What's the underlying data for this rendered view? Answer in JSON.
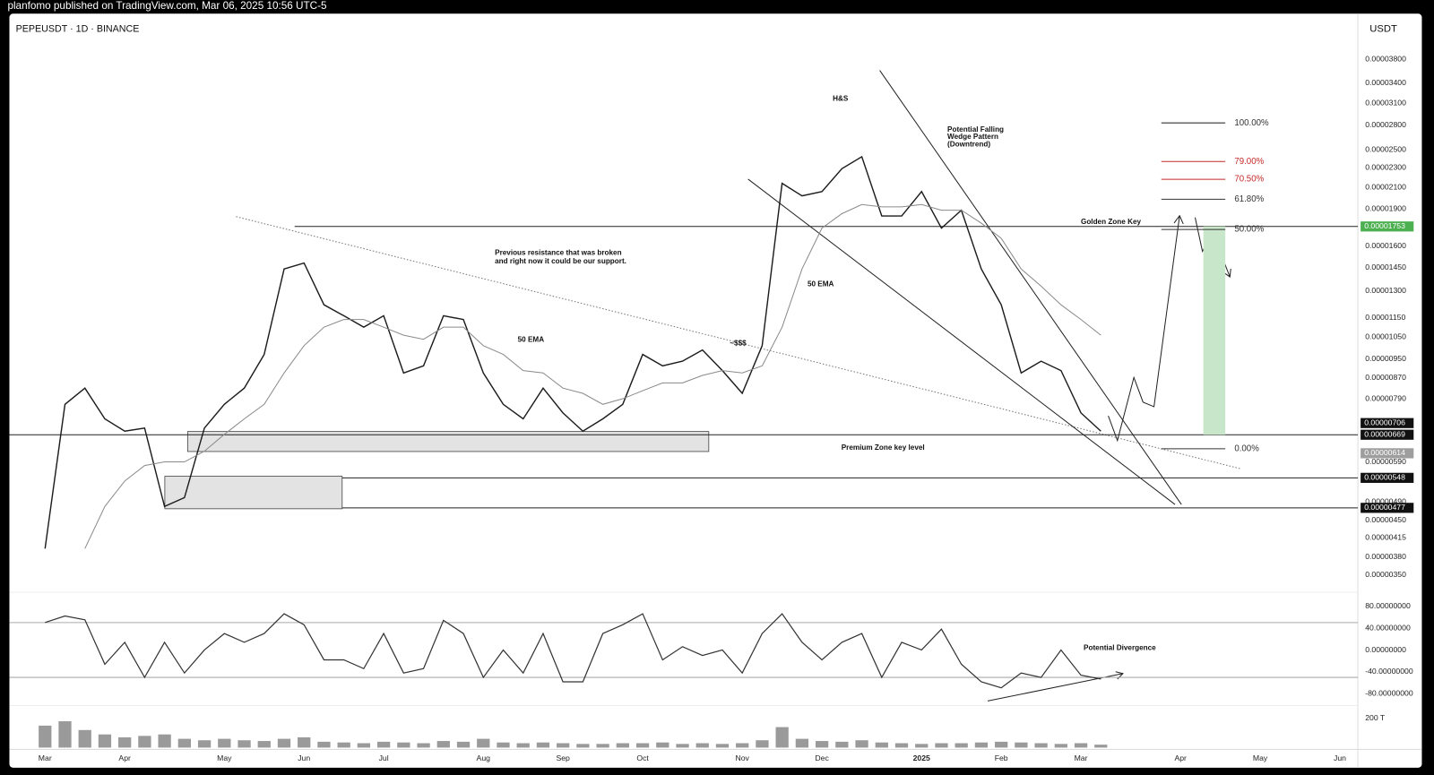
{
  "header": "planfomo published on TradingView.com, Mar 06, 2025 10:56 UTC-5",
  "chart_data": [
    {
      "type": "line",
      "title": "PEPEUSDT · 1D · BINANCE",
      "y_label": "USDT",
      "log_scale": true,
      "categories": [
        "Mar",
        null,
        null,
        null,
        "Apr",
        null,
        null,
        null,
        null,
        "May",
        null,
        null,
        null,
        "Jun",
        null,
        null,
        null,
        "Jul",
        null,
        null,
        null,
        null,
        "Aug",
        null,
        null,
        null,
        "Sep",
        null,
        null,
        null,
        "Oct",
        null,
        null,
        null,
        null,
        "Nov",
        null,
        null,
        null,
        "Dec",
        null,
        null,
        null,
        null,
        "2025",
        null,
        null,
        null,
        "Feb",
        null,
        null,
        null,
        "Mar",
        null,
        null,
        null,
        null,
        "Apr",
        null,
        null,
        null,
        "May",
        null,
        null,
        null,
        "Jun"
      ],
      "series": [
        {
          "color": "#1c1c1c",
          "values": [
            3.95e-06,
            7.7e-06,
            8.3e-06,
            7.2e-06,
            6.8e-06,
            6.9e-06,
            4.8e-06,
            5e-06,
            6.9e-06,
            7.7e-06,
            8.3e-06,
            9.7e-06,
            1.44e-05,
            1.48e-05,
            1.22e-05,
            1.16e-05,
            1.1e-05,
            1.16e-05,
            8.9e-06,
            9.2e-06,
            1.16e-05,
            1.14e-05,
            8.9e-06,
            7.7e-06,
            7.2e-06,
            8.3e-06,
            7.4e-06,
            6.8e-06,
            7.2e-06,
            7.7e-06,
            9.7e-06,
            9.2e-06,
            9.4e-06,
            9.9e-06,
            9e-06,
            8.1e-06,
            1.01e-05,
            2.14e-05,
            2.02e-05,
            2.06e-05,
            2.29e-05,
            2.42e-05,
            1.84e-05,
            1.84e-05,
            2.06e-05,
            1.74e-05,
            1.89e-05,
            1.44e-05,
            1.22e-05,
            8.9e-06,
            9.4e-06,
            9e-06,
            7.4e-06,
            6.8e-06,
            null,
            null,
            null,
            null,
            null,
            null,
            null,
            null,
            null,
            null,
            null,
            null
          ]
        },
        {
          "color": "#8a8a8a",
          "values": [
            null,
            null,
            3.95e-06,
            4.8e-06,
            5.4e-06,
            5.8e-06,
            5.9e-06,
            5.9e-06,
            6.2e-06,
            6.7e-06,
            7.2e-06,
            7.7e-06,
            8.9e-06,
            1.01e-05,
            1.1e-05,
            1.14e-05,
            1.14e-05,
            1.1e-05,
            1.06e-05,
            1.04e-05,
            1.1e-05,
            1.1e-05,
            1.01e-05,
            9.7e-06,
            9e-06,
            8.9e-06,
            8.3e-06,
            8.1e-06,
            7.7e-06,
            7.9e-06,
            8.2e-06,
            8.5e-06,
            8.5e-06,
            8.8e-06,
            9e-06,
            8.9e-06,
            9.2e-06,
            1.1e-05,
            1.44e-05,
            1.74e-05,
            1.86e-05,
            1.94e-05,
            1.92e-05,
            1.92e-05,
            1.94e-05,
            1.89e-05,
            1.89e-05,
            1.78e-05,
            1.66e-05,
            1.44e-05,
            1.33e-05,
            1.22e-05,
            1.14e-05,
            1.06e-05,
            null,
            null,
            null,
            null,
            null,
            null,
            null,
            null,
            null,
            null,
            null,
            null
          ]
        }
      ],
      "ylim": [
        3.27e-06,
        4.69e-05
      ],
      "yticks": [
        {
          "value": 3.8e-05,
          "label": "0.00003800"
        },
        {
          "value": 3.4e-05,
          "label": "0.00003400"
        },
        {
          "value": 3.1e-05,
          "label": "0.00003100"
        },
        {
          "value": 2.8e-05,
          "label": "0.00002800"
        },
        {
          "value": 2.5e-05,
          "label": "0.00002500"
        },
        {
          "value": 2.3e-05,
          "label": "0.00002300"
        },
        {
          "value": 2.1e-05,
          "label": "0.00002100"
        },
        {
          "value": 1.9e-05,
          "label": "0.00001900"
        },
        {
          "value": 1.6e-05,
          "label": "0.00001600"
        },
        {
          "value": 1.45e-05,
          "label": "0.00001450"
        },
        {
          "value": 1.3e-05,
          "label": "0.00001300"
        },
        {
          "value": 1.15e-05,
          "label": "0.00001150"
        },
        {
          "value": 1.05e-05,
          "label": "0.00001050"
        },
        {
          "value": 9.5e-06,
          "label": "0.00000950"
        },
        {
          "value": 8.7e-06,
          "label": "0.00000870"
        },
        {
          "value": 7.9e-06,
          "label": "0.00000790"
        },
        {
          "value": 5.9e-06,
          "label": "0.00000590"
        },
        {
          "value": 4.9e-06,
          "label": "0.00000490"
        },
        {
          "value": 4.5e-06,
          "label": "0.00000450"
        },
        {
          "value": 4.15e-06,
          "label": "0.00000415"
        },
        {
          "value": 3.8e-06,
          "label": "0.00000380"
        },
        {
          "value": 3.5e-06,
          "label": "0.00000350"
        }
      ],
      "price_tags": [
        {
          "value": 1.753e-05,
          "color": "#4caf50"
        },
        {
          "value": 7.06e-06,
          "color": "#111111"
        },
        {
          "value": 6.69e-06,
          "color": "#111111"
        },
        {
          "value": 6.14e-06,
          "color": "#9e9e9e"
        },
        {
          "value": 5.48e-06,
          "color": "#111111"
        },
        {
          "value": 4.77e-06,
          "color": "#111111"
        }
      ],
      "levels": [
        1.753e-05,
        6.69e-06,
        5.48e-06,
        4.77e-06
      ],
      "zones": [
        [
          6.79e-06,
          6.19e-06
        ],
        [
          5.52e-06,
          4.75e-06
        ]
      ],
      "position": [
        6.69e-06,
        1.753e-05
      ],
      "fib": {
        "from": 6.27e-06,
        "to": 2.83e-05,
        "levels": [
          {
            "value": 100,
            "label": "100.00%",
            "color": "#333333"
          },
          {
            "value": 79,
            "label": "79.00%",
            "color": "#c62828"
          },
          {
            "value": 70.5,
            "label": "70.50%",
            "color": "#c62828"
          },
          {
            "value": 61.8,
            "label": "61.80%",
            "color": "#333333"
          },
          {
            "value": 50,
            "label": "50.00%",
            "color": "#333333"
          },
          {
            "value": 0,
            "label": "0.00%",
            "color": "#333333"
          }
        ]
      },
      "annotations": [
        "H&S",
        "Potential Falling",
        "Wedge Pattern",
        "(Downtrend)",
        "Golden Zone Key",
        "Previous resistance that was broken",
        "and right now it could be our support.",
        "50 EMA",
        "50 EMA",
        "Premium Zone key level",
        "~$$$"
      ]
    },
    {
      "type": "line",
      "color": "#333333",
      "values": [
        50,
        62,
        55,
        -26,
        14,
        -50,
        14,
        -42,
        0,
        30,
        14,
        30,
        66,
        46,
        -18,
        -18,
        -34,
        30,
        -42,
        -34,
        54,
        30,
        -50,
        0,
        -42,
        30,
        -58,
        -58,
        30,
        46,
        66,
        -18,
        6,
        -10,
        0,
        -42,
        30,
        66,
        14,
        -18,
        14,
        30,
        -50,
        14,
        0,
        38,
        -26,
        -58,
        -69,
        -42,
        -50,
        0,
        -46,
        -53,
        null,
        null,
        null,
        null,
        null,
        null,
        null,
        null,
        null,
        null,
        null,
        null
      ],
      "levels": [
        50,
        -50
      ],
      "ylim": [
        -98,
        102
      ],
      "yticks": [
        {
          "value": 80,
          "label": "80.00000000"
        },
        {
          "value": 40,
          "label": "40.00000000"
        },
        {
          "value": 0,
          "label": "0.00000000"
        },
        {
          "value": -40,
          "label": "-40.00000000"
        },
        {
          "value": -80,
          "label": "-80.00000000"
        }
      ],
      "annotations": [
        "Potential Divergence"
      ]
    },
    {
      "type": "bar",
      "color": "#9a9a9a",
      "values": [
        150,
        180,
        120,
        90,
        70,
        80,
        90,
        60,
        50,
        60,
        50,
        45,
        60,
        70,
        40,
        35,
        30,
        40,
        35,
        30,
        45,
        40,
        60,
        35,
        30,
        35,
        30,
        25,
        25,
        30,
        30,
        35,
        25,
        30,
        25,
        30,
        50,
        140,
        60,
        45,
        40,
        50,
        35,
        30,
        25,
        30,
        30,
        35,
        40,
        35,
        30,
        25,
        30,
        20,
        null,
        null,
        null,
        null,
        null,
        null,
        null,
        null,
        null,
        null,
        null,
        null
      ],
      "ylim": [
        0,
        250
      ],
      "yticks": [
        {
          "value": 200,
          "label": "200 T"
        }
      ]
    }
  ]
}
